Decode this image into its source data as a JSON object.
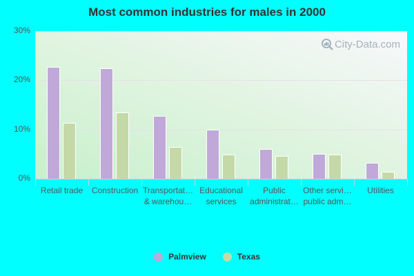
{
  "title": "Most common industries for males in 2000",
  "watermark": "City-Data.com",
  "colors": {
    "palmview": "#c0a8d8",
    "texas": "#c5d9a8",
    "background": "#00ffff"
  },
  "legend": [
    {
      "label": "Palmview",
      "color": "#c0a8d8"
    },
    {
      "label": "Texas",
      "color": "#c5d9a8"
    }
  ],
  "y_ticks": [
    "0%",
    "10%",
    "20%",
    "30%"
  ],
  "x_labels": [
    [
      "Retail trade"
    ],
    [
      "Construction"
    ],
    [
      "Transportat…",
      "& warehou…"
    ],
    [
      "Educational",
      "services"
    ],
    [
      "Public",
      "administrat…"
    ],
    [
      "Other servi…",
      "public adm…"
    ],
    [
      "Utilities"
    ]
  ],
  "chart_data": {
    "type": "bar",
    "title": "Most common industries for males in 2000",
    "xlabel": "",
    "ylabel": "",
    "ylim": [
      0,
      30
    ],
    "y_tick_labels": [
      "0%",
      "10%",
      "20%",
      "30%"
    ],
    "grid": true,
    "legend_position": "bottom",
    "categories": [
      "Retail trade",
      "Construction",
      "Transportation & warehousing",
      "Educational services",
      "Public administration",
      "Other services, except public administration",
      "Utilities"
    ],
    "series": [
      {
        "name": "Palmview",
        "color": "#c0a8d8",
        "values": [
          22.7,
          22.5,
          12.8,
          10.0,
          6.1,
          5.1,
          3.2
        ]
      },
      {
        "name": "Texas",
        "color": "#c5d9a8",
        "values": [
          11.4,
          13.4,
          6.5,
          4.9,
          4.6,
          4.9,
          1.4
        ]
      }
    ]
  }
}
